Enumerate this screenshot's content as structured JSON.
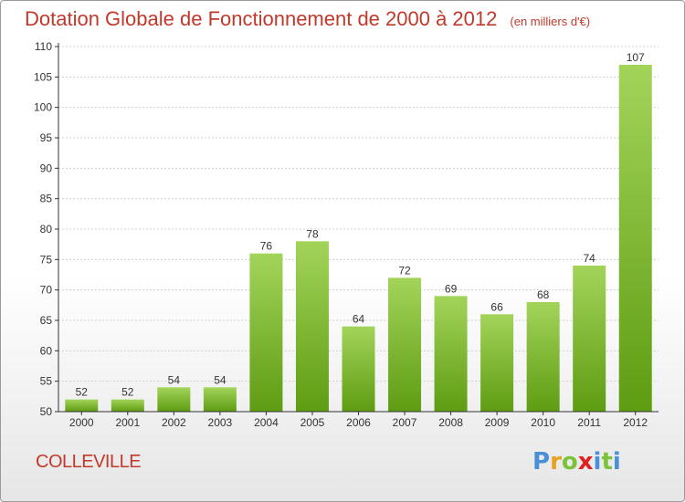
{
  "title": "Dotation Globale de Fonctionnement de 2000 à 2012",
  "unit_label": "(en milliers d'€)",
  "commune": "COLLEVILLE",
  "logo": {
    "text": "Proxiti",
    "letters": [
      "P",
      "r",
      "o",
      "x",
      "i",
      "t",
      "i"
    ],
    "letter_colors": [
      "#4a90d9",
      "#e8a020",
      "#7cc33a",
      "#e02020",
      "#4a90d9",
      "#7cc33a",
      "#4a90d9"
    ]
  },
  "colors": {
    "bar_light": "#a3d45a",
    "bar_dark": "#5e9c12",
    "title": "#c0392b",
    "axis": "#333333",
    "grid": "#d0d0d0"
  },
  "chart_data": {
    "type": "bar",
    "title": "Dotation Globale de Fonctionnement de 2000 à 2012",
    "subtitle": "(en milliers d'€)",
    "categories": [
      "2000",
      "2001",
      "2002",
      "2003",
      "2004",
      "2005",
      "2006",
      "2007",
      "2008",
      "2009",
      "2010",
      "2011",
      "2012"
    ],
    "values": [
      52,
      52,
      54,
      54,
      76,
      78,
      64,
      72,
      69,
      66,
      68,
      74,
      107
    ],
    "data_labels": [
      "52",
      "52",
      "54",
      "54",
      "76",
      "78",
      "64",
      "72",
      "69",
      "66",
      "68",
      "74",
      "107"
    ],
    "ylim": [
      50,
      110
    ],
    "yticks": [
      50,
      55,
      60,
      65,
      70,
      75,
      80,
      85,
      90,
      95,
      100,
      105,
      110
    ],
    "grid": true,
    "xlabel": "",
    "ylabel": ""
  }
}
